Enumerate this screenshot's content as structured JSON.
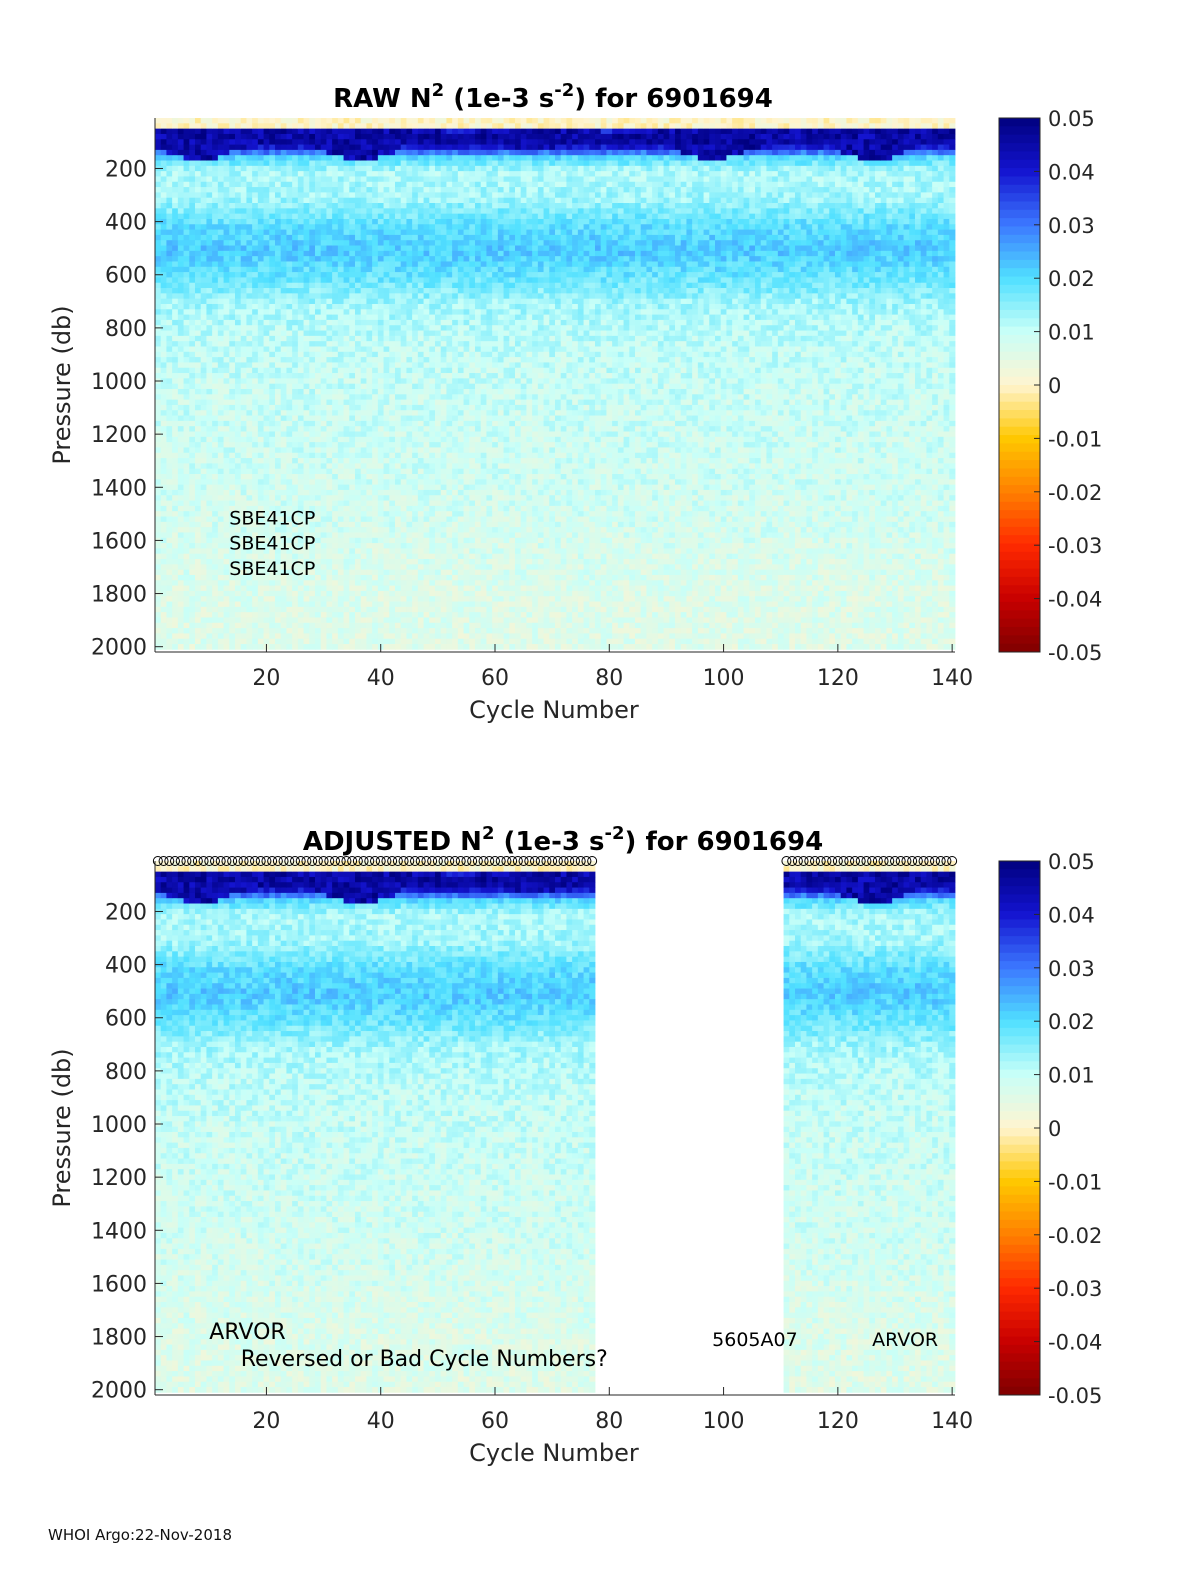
{
  "chart_data": [
    {
      "type": "heatmap",
      "title": {
        "prefix": "RAW N",
        "sup1": "2",
        "mid": " (1e-3 s",
        "sup2": "-2",
        "suffix": ") for 6901694"
      },
      "xlabel": "Cycle Number",
      "ylabel": "Pressure (db)",
      "xlim": [
        1,
        140
      ],
      "ylim": [
        2020,
        10
      ],
      "xticks": [
        20,
        40,
        60,
        80,
        100,
        120,
        140
      ],
      "yticks": [
        200,
        400,
        600,
        800,
        1000,
        1200,
        1400,
        1600,
        1800,
        2000
      ],
      "colorbar": {
        "min": -0.05,
        "max": 0.05,
        "ticks": [
          "0.05",
          "0.04",
          "0.03",
          "0.02",
          "0.01",
          "0",
          "-0.01",
          "-0.02",
          "-0.03",
          "-0.04",
          "-0.05"
        ]
      },
      "colormap": [
        "#7f0000",
        "#c80000",
        "#ff2a00",
        "#ff8000",
        "#ffc800",
        "#fff4d0",
        "#c8fff8",
        "#50e0ff",
        "#3c78ff",
        "#1414d0",
        "#00007f"
      ],
      "data_cycles": [
        [
          1,
          140
        ]
      ],
      "missing_cycles": [],
      "profile_values": {
        "pressure": [
          10,
          60,
          100,
          150,
          200,
          300,
          400,
          500,
          600,
          700,
          800,
          1000,
          1200,
          1400,
          1600,
          1800,
          2000
        ],
        "N2_typical": [
          0.0,
          0.048,
          0.045,
          0.02,
          0.012,
          0.013,
          0.019,
          0.022,
          0.018,
          0.013,
          0.011,
          0.0095,
          0.009,
          0.0085,
          0.0075,
          0.0065,
          0.006
        ]
      },
      "annotations": [
        {
          "text": "SBE41CP",
          "cycle": 13.5,
          "pressure": 1540
        },
        {
          "text": "SBE41CP",
          "cycle": 13.5,
          "pressure": 1635
        },
        {
          "text": "SBE41CP",
          "cycle": 13.5,
          "pressure": 1730
        }
      ]
    },
    {
      "type": "heatmap",
      "title": {
        "prefix": "ADJUSTED N",
        "sup1": "2",
        "mid": " (1e-3 s",
        "sup2": "-2",
        "suffix": ") for 6901694"
      },
      "xlabel": "Cycle Number",
      "ylabel": "Pressure (db)",
      "xlim": [
        1,
        140
      ],
      "ylim": [
        2020,
        10
      ],
      "xticks": [
        20,
        40,
        60,
        80,
        100,
        120,
        140
      ],
      "yticks": [
        200,
        400,
        600,
        800,
        1000,
        1200,
        1400,
        1600,
        1800,
        2000
      ],
      "colorbar": {
        "min": -0.05,
        "max": 0.05,
        "ticks": [
          "0.05",
          "0.04",
          "0.03",
          "0.02",
          "0.01",
          "0",
          "-0.01",
          "-0.02",
          "-0.03",
          "-0.04",
          "-0.05"
        ]
      },
      "colormap": [
        "#7f0000",
        "#c80000",
        "#ff2a00",
        "#ff8000",
        "#ffc800",
        "#fff4d0",
        "#c8fff8",
        "#50e0ff",
        "#3c78ff",
        "#1414d0",
        "#00007f"
      ],
      "data_cycles": [
        [
          1,
          77
        ],
        [
          111,
          140
        ]
      ],
      "missing_cycles": [
        [
          78,
          110
        ]
      ],
      "bad_cycle_markers": {
        "symbol": "o",
        "cycles": [
          [
            1,
            77
          ],
          [
            111,
            140
          ]
        ],
        "pressure": 10
      },
      "annotations": [
        {
          "text": "ARVOR",
          "cycle": 10,
          "pressure": 1810,
          "size": "large"
        },
        {
          "text": "Reversed or Bad Cycle Numbers?",
          "cycle": 15.5,
          "pressure": 1910,
          "size": "large"
        },
        {
          "text": "5605A07",
          "cycle": 98,
          "pressure": 1835
        },
        {
          "text": "ARVOR",
          "cycle": 126,
          "pressure": 1835
        }
      ]
    }
  ],
  "footer": "WHOI Argo:22-Nov-2018"
}
